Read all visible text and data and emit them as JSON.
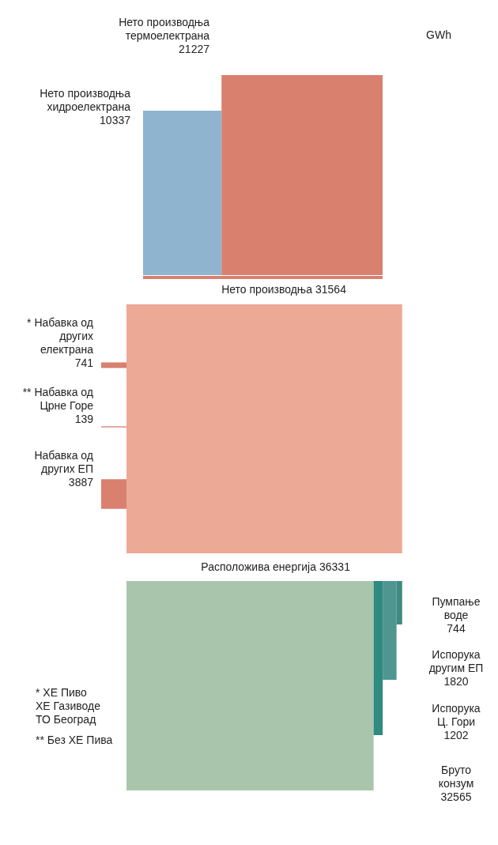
{
  "chart_data": {
    "type": "other",
    "categories": [
      "Нето производња\nтермоелектрана",
      "Нето производња\nхидроелектрана",
      "Нето производња",
      "* Набавка од\nдругих\nелектрана",
      "** Набавка од\nЦрне Горе",
      "Набавка од\nдругих ЕП",
      "Расположива енергија",
      "Пумпање\nводе",
      "Испорука\nдругим ЕП",
      "Испорука\nЦ. Гори",
      "Бруто\nконзум"
    ],
    "values": [
      21227,
      10337,
      31564,
      741,
      139,
      3887,
      36331,
      744,
      1820,
      1202,
      32565
    ],
    "colors": [
      "#d9806f",
      "#8fb4d0",
      "#d9806f",
      "#d9806f",
      "#d9806f",
      "#d9806f",
      "#eba996",
      "#3e8a84",
      "#4f9690",
      "#2f8a80",
      "#a9c6ac"
    ],
    "data_labels": true,
    "annotations": [
      "GWh",
      "* ХЕ Пиво\nХЕ Газиводе\nТО Београд",
      "** Без ХЕ Пива"
    ]
  }
}
